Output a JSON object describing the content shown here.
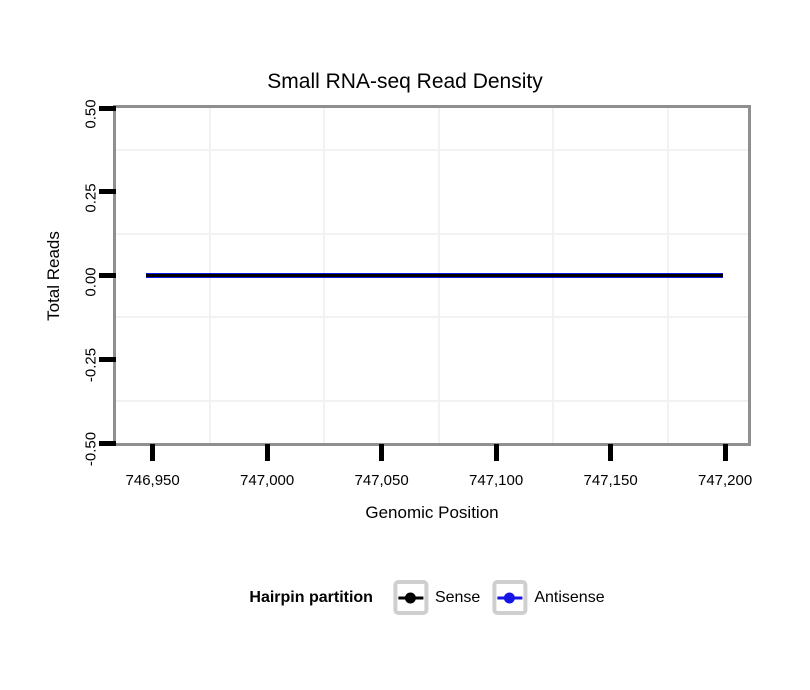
{
  "chart_data": {
    "type": "line",
    "title": "Small RNA-seq Read Density",
    "xlabel": "Genomic Position",
    "ylabel": "Total Reads",
    "xlim": [
      746934,
      747210
    ],
    "ylim": [
      -0.5,
      0.5
    ],
    "x_ticks": {
      "values": [
        746950,
        747000,
        747050,
        747100,
        747150,
        747200
      ],
      "labels": [
        "746,950",
        "747,000",
        "747,050",
        "747,100",
        "747,150",
        "747,200"
      ]
    },
    "y_ticks": {
      "values": [
        0.5,
        0.25,
        0,
        -0.25,
        -0.5
      ],
      "labels": [
        "0.50",
        "0.25",
        "0.00",
        "-0.25",
        "-0.50"
      ]
    },
    "grid": {
      "color": "#f2f2f2",
      "minor_x": [
        746975,
        747025,
        747075,
        747125,
        747175
      ],
      "minor_y": [
        0.375,
        0.125,
        -0.125,
        -0.375
      ]
    },
    "legend": {
      "title": "Hairpin partition",
      "position": "bottom"
    },
    "series": [
      {
        "name": "Sense",
        "color": "#000000",
        "x": [
          746947,
          747199
        ],
        "y": [
          0,
          0
        ],
        "linewidth": 3
      },
      {
        "name": "Antisense",
        "color": "#1414e6",
        "x": [
          746947,
          747199
        ],
        "y": [
          0,
          0
        ],
        "linewidth": 5
      }
    ],
    "colors": {
      "panel_border": "#8f8f8f",
      "tick": "#000000",
      "legend_key_border": "#cfcfcf",
      "background": "#ffffff"
    }
  }
}
